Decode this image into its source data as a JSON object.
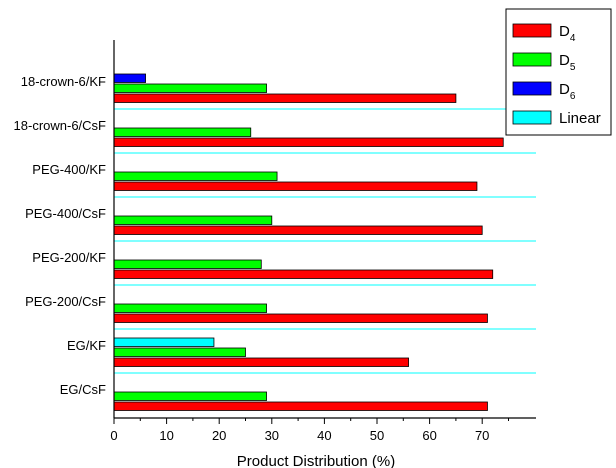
{
  "chart_data": {
    "type": "bar",
    "orientation": "horizontal",
    "categories": [
      "18-crown-6/KF",
      "18-crown-6/CsF",
      "PEG-400/KF",
      "PEG-400/CsF",
      "PEG-200/KF",
      "PEG-200/CsF",
      "EG/KF",
      "EG/CsF"
    ],
    "series": [
      {
        "name": "D4",
        "label_main": "D",
        "label_sub": "4",
        "color": "#ff0000",
        "values": [
          65,
          74,
          69,
          70,
          72,
          71,
          56,
          71
        ]
      },
      {
        "name": "D5",
        "label_main": "D",
        "label_sub": "5",
        "color": "#00ff00",
        "values": [
          29,
          26,
          31,
          30,
          28,
          29,
          25,
          29
        ]
      },
      {
        "name": "D6",
        "label_main": "D",
        "label_sub": "6",
        "color": "#0000ff",
        "values": [
          6,
          0,
          0,
          0,
          0,
          0,
          0,
          0
        ]
      },
      {
        "name": "Linear",
        "label_main": "Linear",
        "label_sub": "",
        "color": "#00ffff",
        "values": [
          0,
          0,
          0,
          0,
          0,
          0,
          19,
          0
        ]
      }
    ],
    "xlabel": "Product Distribution (%)",
    "ylabel": "",
    "xlim": [
      0,
      80
    ],
    "xticks": [
      0,
      10,
      20,
      30,
      40,
      50,
      60,
      70
    ],
    "separator_color": "#00ffff",
    "legend_position": "top-right",
    "grid": false
  }
}
